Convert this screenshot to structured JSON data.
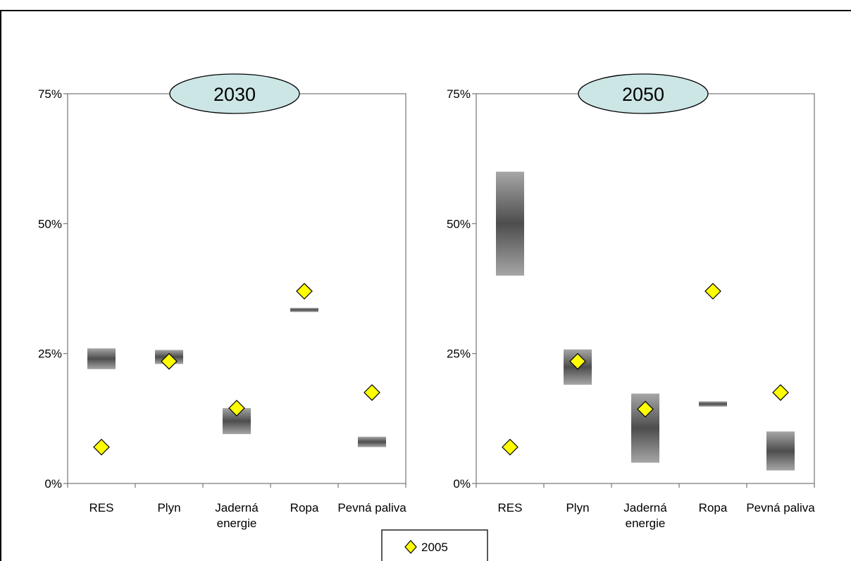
{
  "chart_data": [
    {
      "type": "scatter",
      "title": "2030",
      "categories": [
        "RES",
        "Plyn",
        "Jaderná energie",
        "Ropa",
        "Pevná paliva"
      ],
      "ylim": [
        0,
        75
      ],
      "y_ticks": [
        "0%",
        "25%",
        "50%",
        "75%"
      ],
      "grid": false,
      "ranges": [
        {
          "category": "RES",
          "low": 22.0,
          "high": 26.0
        },
        {
          "category": "Plyn",
          "low": 23.0,
          "high": 25.7
        },
        {
          "category": "Jaderná energie",
          "low": 9.5,
          "high": 14.5
        },
        {
          "category": "Ropa",
          "low": 33.0,
          "high": 33.8
        },
        {
          "category": "Pevná paliva",
          "low": 7.0,
          "high": 9.0
        }
      ],
      "series": [
        {
          "name": "2005",
          "marker": "diamond",
          "color": "#ffff00",
          "values": [
            7.0,
            23.5,
            14.5,
            37.0,
            17.5
          ]
        }
      ]
    },
    {
      "type": "scatter",
      "title": "2050",
      "categories": [
        "RES",
        "Plyn",
        "Jaderná energie",
        "Ropa",
        "Pevná paliva"
      ],
      "ylim": [
        0,
        75
      ],
      "y_ticks": [
        "0%",
        "25%",
        "50%",
        "75%"
      ],
      "grid": false,
      "ranges": [
        {
          "category": "RES",
          "low": 40.0,
          "high": 60.0
        },
        {
          "category": "Plyn",
          "low": 19.0,
          "high": 25.8
        },
        {
          "category": "Jaderná energie",
          "low": 4.0,
          "high": 17.3
        },
        {
          "category": "Ropa",
          "low": 14.8,
          "high": 15.8
        },
        {
          "category": "Pevná paliva",
          "low": 2.5,
          "high": 10.0
        }
      ],
      "series": [
        {
          "name": "2005",
          "marker": "diamond",
          "color": "#ffff00",
          "values": [
            7.0,
            23.5,
            14.3,
            37.0,
            17.5
          ]
        }
      ]
    }
  ],
  "legend": {
    "label": "2005",
    "position": "bottom-center"
  },
  "colors": {
    "title_bubble": "#cce6e6",
    "marker_fill": "#ffff00",
    "range_dark": "#4d4d4d",
    "range_light": "#a6a6a6",
    "axis": "#808080"
  }
}
